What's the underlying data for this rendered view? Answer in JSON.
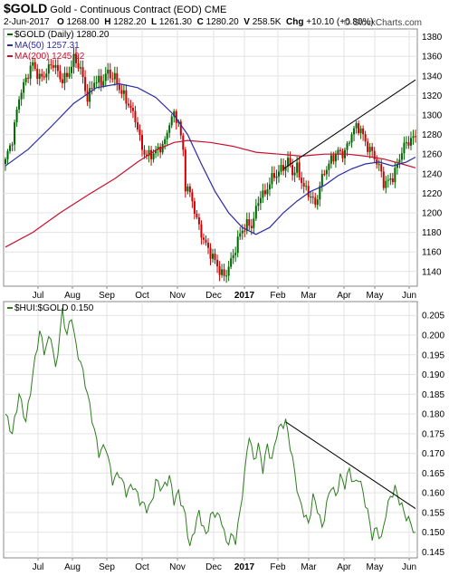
{
  "header": {
    "symbol": "$GOLD",
    "subtitle": "Gold - Continuous Contract (EOD)",
    "exchange": "CME",
    "date": "2-Jun-2017",
    "open_label": "O",
    "open": "1268.00",
    "high_label": "H",
    "high": "1282.20",
    "low_label": "L",
    "low": "1261.30",
    "close_label": "C",
    "close": "1280.20",
    "volume_label": "V",
    "volume": "258.5K",
    "change_label": "Chg",
    "change": "+10.10 (+0.80%)",
    "credit": "© StockCharts.com"
  },
  "colors": {
    "bull": "#006600",
    "bear": "#cc0000",
    "ma50": "#2b2ba6",
    "ma200": "#c8102e",
    "ratio": "#2d7d1e",
    "trend": "#000000",
    "grid": "#e3e3e3"
  },
  "chart_data": [
    {
      "type": "candlestick",
      "legend": [
        {
          "label": "$GOLD (Daily) 1280.20",
          "color": "#006600"
        },
        {
          "label": "MA(50) 1257.31",
          "color": "#2b2ba6"
        },
        {
          "label": "MA(200) 1245.92",
          "color": "#c8102e"
        }
      ],
      "y_ticks": [
        "1140",
        "1160",
        "1180",
        "1200",
        "1220",
        "1240",
        "1260",
        "1280",
        "1300",
        "1320",
        "1340",
        "1360",
        "1380"
      ],
      "ylim": [
        1125,
        1388
      ],
      "x_ticks": [
        "Jul",
        "Aug",
        "Sep",
        "Oct",
        "Nov",
        "Dec",
        "2017",
        "Feb",
        "Mar",
        "Apr",
        "May",
        "Jun"
      ],
      "close_path": [
        [
          0,
          1250
        ],
        [
          3,
          1275
        ],
        [
          6,
          1322
        ],
        [
          9,
          1335
        ],
        [
          12,
          1350
        ],
        [
          15,
          1340
        ],
        [
          18,
          1345
        ],
        [
          21,
          1350
        ],
        [
          24,
          1338
        ],
        [
          27,
          1342
        ],
        [
          30,
          1355
        ],
        [
          33,
          1345
        ],
        [
          36,
          1320
        ],
        [
          39,
          1335
        ],
        [
          42,
          1330
        ],
        [
          45,
          1345
        ],
        [
          48,
          1340
        ],
        [
          51,
          1320
        ],
        [
          54,
          1310
        ],
        [
          57,
          1300
        ],
        [
          60,
          1265
        ],
        [
          62,
          1255
        ],
        [
          64,
          1258
        ],
        [
          66,
          1265
        ],
        [
          68,
          1270
        ],
        [
          70,
          1272
        ],
        [
          72,
          1290
        ],
        [
          74,
          1298
        ],
        [
          76,
          1295
        ],
        [
          78,
          1265
        ],
        [
          79,
          1230
        ],
        [
          80,
          1225
        ],
        [
          82,
          1210
        ],
        [
          84,
          1190
        ],
        [
          86,
          1180
        ],
        [
          88,
          1170
        ],
        [
          90,
          1160
        ],
        [
          92,
          1148
        ],
        [
          94,
          1138
        ],
        [
          96,
          1135
        ],
        [
          98,
          1148
        ],
        [
          100,
          1158
        ],
        [
          102,
          1170
        ],
        [
          104,
          1180
        ],
        [
          106,
          1188
        ],
        [
          108,
          1190
        ],
        [
          110,
          1205
        ],
        [
          112,
          1218
        ],
        [
          114,
          1215
        ],
        [
          116,
          1232
        ],
        [
          118,
          1240
        ],
        [
          120,
          1245
        ],
        [
          122,
          1245
        ],
        [
          124,
          1250
        ],
        [
          126,
          1240
        ],
        [
          128,
          1248
        ],
        [
          130,
          1235
        ],
        [
          132,
          1222
        ],
        [
          134,
          1215
        ],
        [
          136,
          1205
        ],
        [
          138,
          1230
        ],
        [
          140,
          1245
        ],
        [
          142,
          1250
        ],
        [
          144,
          1255
        ],
        [
          146,
          1260
        ],
        [
          148,
          1262
        ],
        [
          150,
          1270
        ],
        [
          152,
          1283
        ],
        [
          154,
          1285
        ],
        [
          156,
          1283
        ],
        [
          158,
          1272
        ],
        [
          160,
          1268
        ],
        [
          162,
          1258
        ],
        [
          164,
          1245
        ],
        [
          166,
          1228
        ],
        [
          168,
          1232
        ],
        [
          170,
          1240
        ],
        [
          172,
          1250
        ],
        [
          174,
          1262
        ],
        [
          176,
          1268
        ],
        [
          178,
          1275
        ],
        [
          180,
          1280
        ]
      ],
      "ma50_path": [
        [
          0,
          1248
        ],
        [
          10,
          1265
        ],
        [
          20,
          1288
        ],
        [
          30,
          1312
        ],
        [
          40,
          1328
        ],
        [
          50,
          1332
        ],
        [
          58,
          1328
        ],
        [
          66,
          1318
        ],
        [
          74,
          1300
        ],
        [
          80,
          1280
        ],
        [
          86,
          1250
        ],
        [
          92,
          1222
        ],
        [
          98,
          1200
        ],
        [
          104,
          1185
        ],
        [
          110,
          1178
        ],
        [
          116,
          1185
        ],
        [
          122,
          1200
        ],
        [
          128,
          1212
        ],
        [
          134,
          1222
        ],
        [
          140,
          1228
        ],
        [
          146,
          1238
        ],
        [
          152,
          1245
        ],
        [
          158,
          1250
        ],
        [
          164,
          1252
        ],
        [
          170,
          1248
        ],
        [
          176,
          1252
        ],
        [
          180,
          1257
        ]
      ],
      "ma200_path": [
        [
          0,
          1165
        ],
        [
          12,
          1180
        ],
        [
          24,
          1200
        ],
        [
          36,
          1218
        ],
        [
          48,
          1235
        ],
        [
          58,
          1252
        ],
        [
          66,
          1264
        ],
        [
          74,
          1272
        ],
        [
          80,
          1274
        ],
        [
          90,
          1272
        ],
        [
          100,
          1268
        ],
        [
          110,
          1262
        ],
        [
          120,
          1260
        ],
        [
          130,
          1258
        ],
        [
          140,
          1260
        ],
        [
          150,
          1260
        ],
        [
          158,
          1258
        ],
        [
          166,
          1255
        ],
        [
          174,
          1250
        ],
        [
          180,
          1246
        ]
      ],
      "trendline": [
        [
          122,
          1245
        ],
        [
          180,
          1336
        ]
      ]
    },
    {
      "type": "line",
      "legend": [
        {
          "label": "$HUI:$GOLD 0.150",
          "color": "#2d7d1e"
        }
      ],
      "y_ticks": [
        "0.145",
        "0.150",
        "0.155",
        "0.160",
        "0.165",
        "0.170",
        "0.175",
        "0.180",
        "0.185",
        "0.190",
        "0.195",
        "0.200",
        "0.205"
      ],
      "ylim": [
        0.1435,
        0.2085
      ],
      "x_ticks": [
        "Jul",
        "Aug",
        "Sep",
        "Oct",
        "Nov",
        "Dec",
        "2017",
        "Feb",
        "Mar",
        "Apr",
        "May",
        "Jun"
      ],
      "values": [
        [
          0,
          0.18
        ],
        [
          3,
          0.175
        ],
        [
          6,
          0.185
        ],
        [
          9,
          0.178
        ],
        [
          12,
          0.19
        ],
        [
          15,
          0.201
        ],
        [
          17,
          0.196
        ],
        [
          20,
          0.2
        ],
        [
          22,
          0.191
        ],
        [
          25,
          0.206
        ],
        [
          27,
          0.2
        ],
        [
          29,
          0.205
        ],
        [
          31,
          0.197
        ],
        [
          33,
          0.193
        ],
        [
          35,
          0.188
        ],
        [
          38,
          0.179
        ],
        [
          41,
          0.17
        ],
        [
          44,
          0.172
        ],
        [
          47,
          0.163
        ],
        [
          50,
          0.165
        ],
        [
          53,
          0.16
        ],
        [
          56,
          0.162
        ],
        [
          59,
          0.158
        ],
        [
          62,
          0.156
        ],
        [
          64,
          0.157
        ],
        [
          66,
          0.163
        ],
        [
          69,
          0.161
        ],
        [
          72,
          0.164
        ],
        [
          74,
          0.158
        ],
        [
          76,
          0.16
        ],
        [
          79,
          0.154
        ],
        [
          81,
          0.146
        ],
        [
          83,
          0.151
        ],
        [
          85,
          0.155
        ],
        [
          88,
          0.149
        ],
        [
          90,
          0.154
        ],
        [
          92,
          0.155
        ],
        [
          95,
          0.153
        ],
        [
          97,
          0.147
        ],
        [
          99,
          0.149
        ],
        [
          101,
          0.148
        ],
        [
          103,
          0.155
        ],
        [
          105,
          0.165
        ],
        [
          107,
          0.175
        ],
        [
          109,
          0.168
        ],
        [
          111,
          0.172
        ],
        [
          113,
          0.166
        ],
        [
          115,
          0.172
        ],
        [
          117,
          0.168
        ],
        [
          119,
          0.175
        ],
        [
          121,
          0.177
        ],
        [
          123,
          0.178
        ],
        [
          125,
          0.172
        ],
        [
          127,
          0.165
        ],
        [
          129,
          0.158
        ],
        [
          131,
          0.155
        ],
        [
          133,
          0.152
        ],
        [
          135,
          0.159
        ],
        [
          137,
          0.156
        ],
        [
          139,
          0.151
        ],
        [
          141,
          0.157
        ],
        [
          143,
          0.162
        ],
        [
          145,
          0.159
        ],
        [
          147,
          0.164
        ],
        [
          149,
          0.162
        ],
        [
          151,
          0.166
        ],
        [
          153,
          0.162
        ],
        [
          155,
          0.164
        ],
        [
          157,
          0.16
        ],
        [
          159,
          0.155
        ],
        [
          161,
          0.149
        ],
        [
          163,
          0.151
        ],
        [
          165,
          0.148
        ],
        [
          167,
          0.155
        ],
        [
          169,
          0.159
        ],
        [
          171,
          0.161
        ],
        [
          173,
          0.158
        ],
        [
          175,
          0.155
        ],
        [
          177,
          0.153
        ],
        [
          180,
          0.15
        ]
      ],
      "trendline": [
        [
          123,
          0.178
        ],
        [
          180,
          0.156
        ]
      ]
    }
  ]
}
